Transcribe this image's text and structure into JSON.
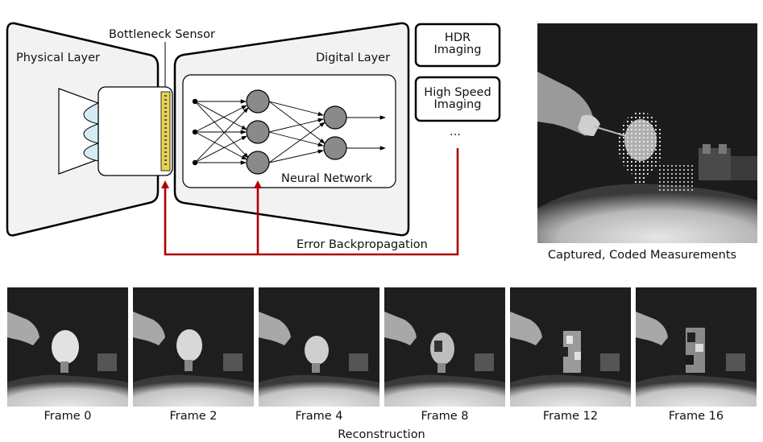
{
  "diagram": {
    "physical_layer_label": "Physical Layer",
    "bottleneck_sensor_label": "Bottleneck Sensor",
    "digital_layer_label": "Digital Layer",
    "neural_network_label": "Neural Network",
    "error_backprop_label": "Error Backpropagation",
    "tasks": [
      {
        "label_line1": "HDR",
        "label_line2": "Imaging"
      },
      {
        "label_line1": "High Speed",
        "label_line2": "Imaging"
      }
    ],
    "tasks_more": "...",
    "colors": {
      "arrow": "#b00000",
      "layer_fill": "#f2f2f2",
      "node_fill": "#8a8a8a",
      "sensor_fill": "#e8d44d",
      "lens_fill": "#d6ecf5"
    }
  },
  "captured": {
    "caption": "Captured, Coded Measurements"
  },
  "reconstruction": {
    "frames": [
      {
        "label": "Frame 0"
      },
      {
        "label": "Frame 2"
      },
      {
        "label": "Frame 4"
      },
      {
        "label": "Frame 8"
      },
      {
        "label": "Frame 12"
      },
      {
        "label": "Frame 16"
      }
    ],
    "caption": "Reconstruction"
  }
}
